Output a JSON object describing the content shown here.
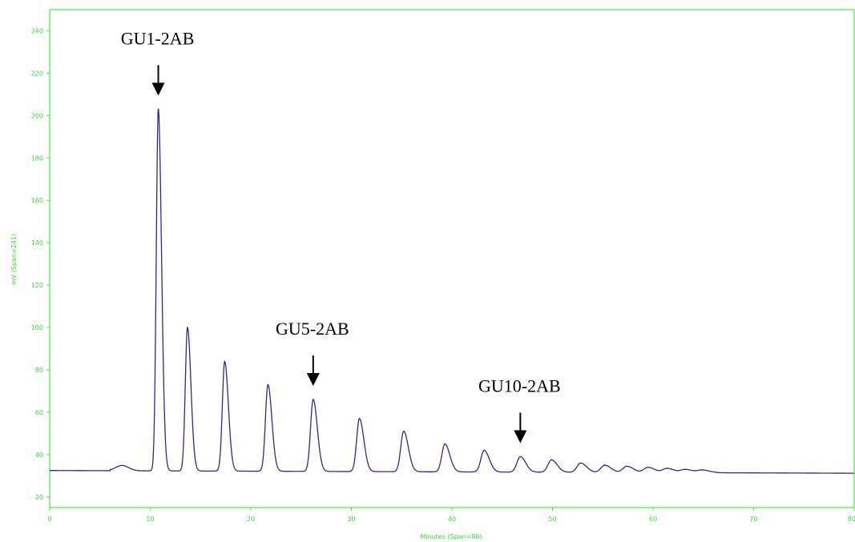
{
  "chart_data": {
    "type": "line",
    "title": "",
    "xlabel": "Minutes (Span=80)",
    "ylabel": "mV (Span=241)",
    "xlim": [
      0,
      80
    ],
    "ylim": [
      15,
      250
    ],
    "x_ticks": [
      0,
      10,
      20,
      30,
      40,
      50,
      60,
      70,
      80
    ],
    "x_tick_labels": [
      "0",
      "10",
      "20",
      "30",
      "40",
      "50",
      "60",
      "70",
      "80"
    ],
    "y_ticks": [
      20,
      40,
      60,
      80,
      100,
      120,
      140,
      160,
      180,
      200,
      220,
      240
    ],
    "y_tick_labels": [
      "20",
      "40",
      "60",
      "80",
      "100",
      "120",
      "140",
      "160",
      "180",
      "200",
      "220",
      "240"
    ],
    "grid": false,
    "colors": {
      "axis": "#44ee44",
      "trace": "#2b2b8f",
      "annotation": "#000000"
    },
    "baseline": {
      "start": 32.5,
      "end": 31.2
    },
    "peaks": [
      {
        "x": 10.8,
        "height": 203
      },
      {
        "x": 13.7,
        "height": 100
      },
      {
        "x": 17.4,
        "height": 84
      },
      {
        "x": 21.7,
        "height": 73
      },
      {
        "x": 26.2,
        "height": 66
      },
      {
        "x": 30.8,
        "height": 57
      },
      {
        "x": 35.2,
        "height": 51
      },
      {
        "x": 39.3,
        "height": 45
      },
      {
        "x": 43.2,
        "height": 42
      },
      {
        "x": 46.8,
        "height": 39
      },
      {
        "x": 49.9,
        "height": 37.5
      },
      {
        "x": 52.8,
        "height": 36
      },
      {
        "x": 55.2,
        "height": 35
      },
      {
        "x": 57.4,
        "height": 34.5
      },
      {
        "x": 59.5,
        "height": 34
      },
      {
        "x": 61.4,
        "height": 33.5
      },
      {
        "x": 63.2,
        "height": 33
      },
      {
        "x": 64.9,
        "height": 32.7
      }
    ],
    "annotations": [
      {
        "text": "GU1-2AB",
        "x": 10.8
      },
      {
        "text": "GU5-2AB",
        "x": 26.2
      },
      {
        "text": "GU10-2AB",
        "x": 46.8
      }
    ]
  }
}
